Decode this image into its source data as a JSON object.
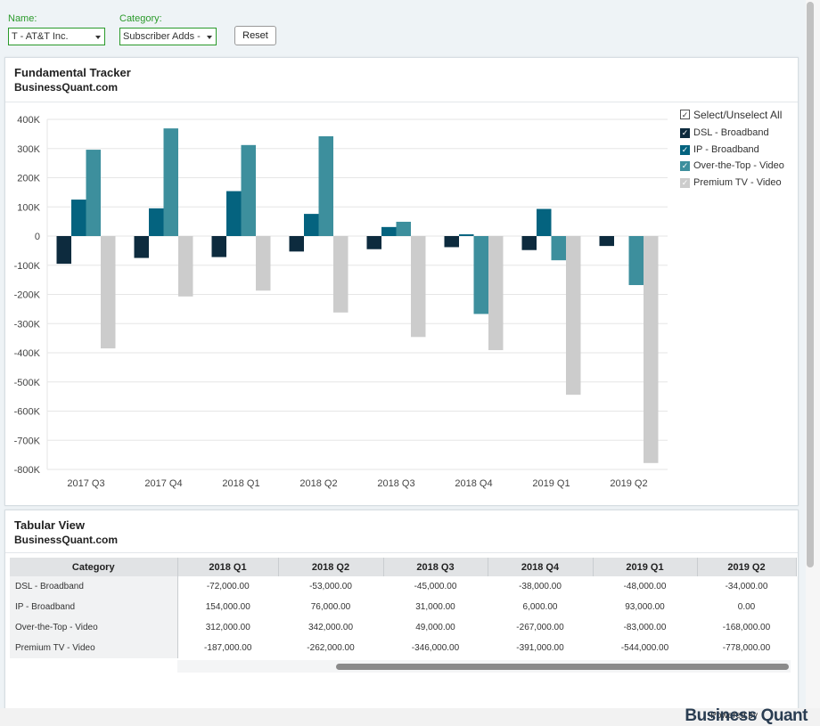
{
  "filters": {
    "name_label": "Name:",
    "name_value": "T - AT&T Inc.",
    "category_label": "Category:",
    "category_value": "Subscriber Adds -",
    "reset_label": "Reset"
  },
  "chart_panel": {
    "title": "Fundamental Tracker",
    "subtitle": "BusinessQuant.com"
  },
  "legend": {
    "select_all": "Select/Unselect All",
    "check": "✓",
    "items": [
      {
        "label": "DSL - Broadband",
        "color": "#0d2b3e"
      },
      {
        "label": "IP - Broadband",
        "color": "#04637f"
      },
      {
        "label": "Over-the-Top - Video",
        "color": "#3d8f9d"
      },
      {
        "label": "Premium TV - Video",
        "color": "#cccccc"
      }
    ]
  },
  "chart_data": {
    "type": "bar",
    "categories": [
      "2017 Q3",
      "2017 Q4",
      "2018 Q1",
      "2018 Q2",
      "2018 Q3",
      "2018 Q4",
      "2019 Q1",
      "2019 Q2"
    ],
    "series": [
      {
        "name": "DSL - Broadband",
        "color": "#0d2b3e",
        "values": [
          -95000,
          -75000,
          -72000,
          -53000,
          -45000,
          -38000,
          -48000,
          -34000
        ]
      },
      {
        "name": "IP - Broadband",
        "color": "#04637f",
        "values": [
          125000,
          95000,
          154000,
          76000,
          31000,
          6000,
          93000,
          0
        ]
      },
      {
        "name": "Over-the-Top - Video",
        "color": "#3d8f9d",
        "values": [
          296000,
          369000,
          312000,
          342000,
          49000,
          -267000,
          -83000,
          -168000
        ]
      },
      {
        "name": "Premium TV - Video",
        "color": "#cccccc",
        "values": [
          -385000,
          -207000,
          -187000,
          -262000,
          -346000,
          -391000,
          -544000,
          -778000
        ]
      }
    ],
    "yticks": [
      "400K",
      "300K",
      "200K",
      "100K",
      "0",
      "-100K",
      "-200K",
      "-300K",
      "-400K",
      "-500K",
      "-600K",
      "-700K",
      "-800K"
    ],
    "ylim": [
      -800000,
      400000
    ],
    "grid": true
  },
  "table_panel": {
    "title": "Tabular View",
    "subtitle": "BusinessQuant.com",
    "header": [
      "Category",
      "2018 Q1",
      "2018 Q2",
      "2018 Q3",
      "2018 Q4",
      "2019 Q1",
      "2019 Q2"
    ],
    "rows": [
      [
        "DSL - Broadband",
        "-72,000.00",
        "-53,000.00",
        "-45,000.00",
        "-38,000.00",
        "-48,000.00",
        "-34,000.00"
      ],
      [
        "IP - Broadband",
        "154,000.00",
        "76,000.00",
        "31,000.00",
        "6,000.00",
        "93,000.00",
        "0.00"
      ],
      [
        "Over-the-Top - Video",
        "312,000.00",
        "342,000.00",
        "49,000.00",
        "-267,000.00",
        "-83,000.00",
        "-168,000.00"
      ],
      [
        "Premium TV - Video",
        "-187,000.00",
        "-262,000.00",
        "-346,000.00",
        "-391,000.00",
        "-544,000.00",
        "-778,000.00"
      ]
    ]
  },
  "footer": {
    "powered_by": "Powered by",
    "logo_text": "Business Quant"
  }
}
